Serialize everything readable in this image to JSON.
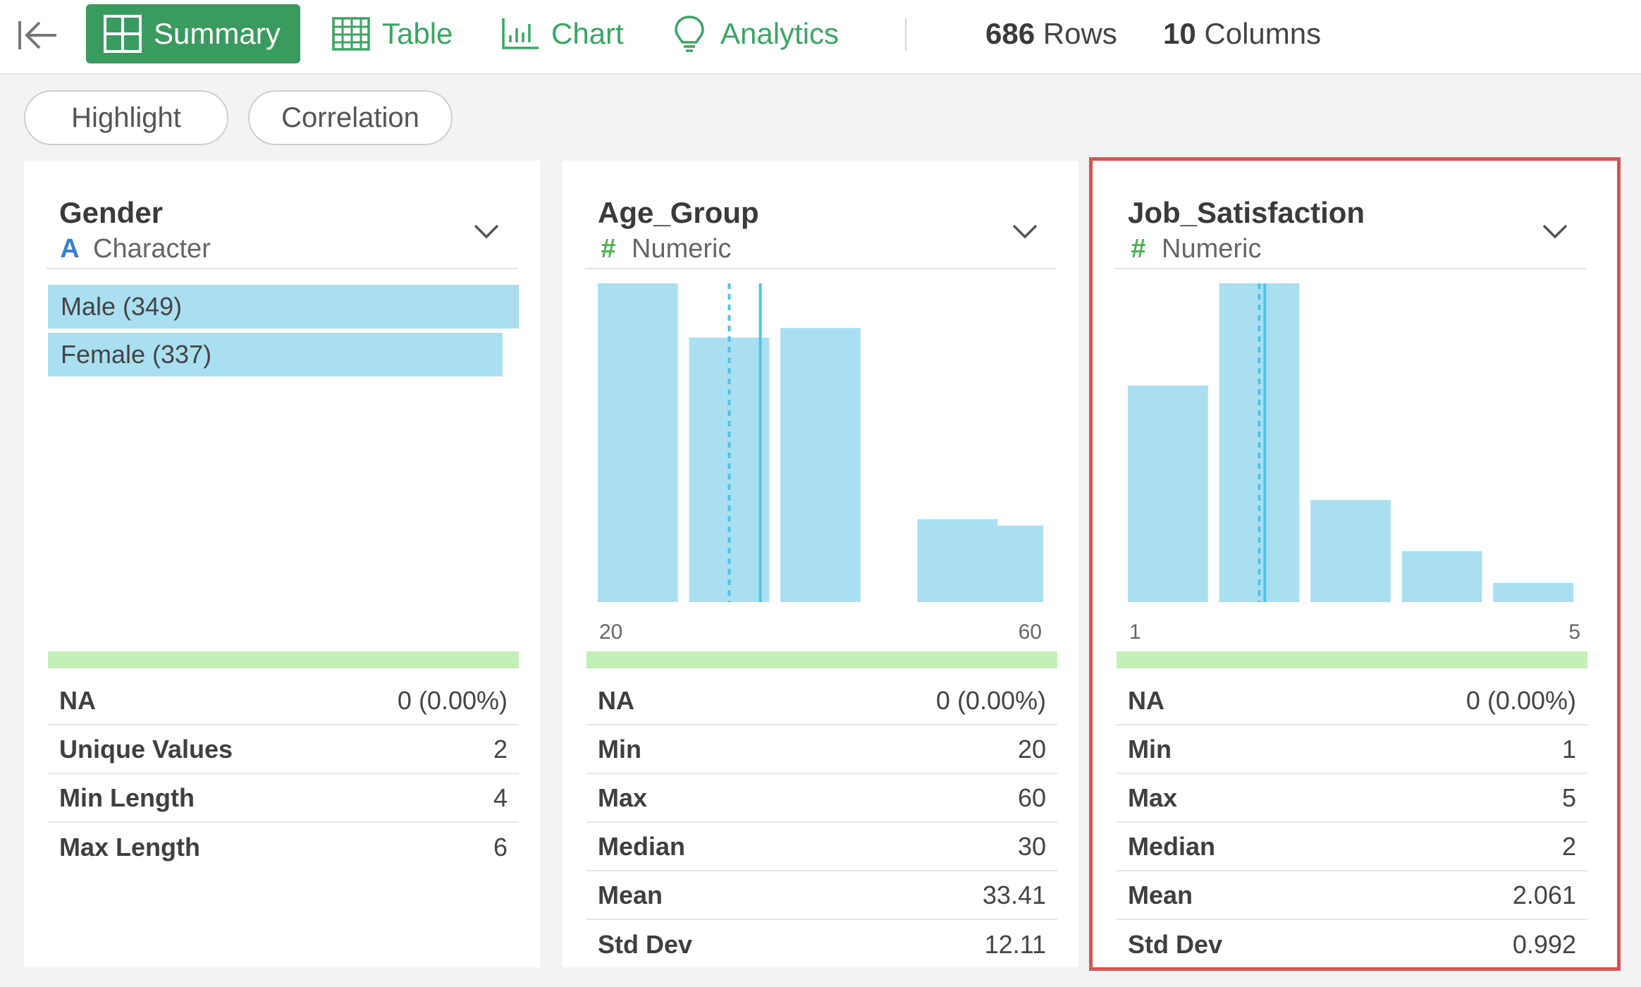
{
  "toolbar": {
    "tabs": [
      {
        "label": "Summary",
        "icon": "summary-grid-icon",
        "active": true
      },
      {
        "label": "Table",
        "icon": "table-icon",
        "active": false
      },
      {
        "label": "Chart",
        "icon": "bar-chart-icon",
        "active": false
      },
      {
        "label": "Analytics",
        "icon": "lightbulb-icon",
        "active": false
      }
    ],
    "rows": {
      "count": "686",
      "label": "Rows"
    },
    "columns": {
      "count": "10",
      "label": "Columns"
    }
  },
  "pills": [
    "Highlight",
    "Correlation"
  ],
  "colors": {
    "accent": "#3a9b5f",
    "bar": "#aadff2",
    "valid": "#c2f0b6",
    "mean_line": "#4fc3e8",
    "selection": "#d9534f"
  },
  "cards": [
    {
      "name": "Gender",
      "type": "Character",
      "type_glyph": "A",
      "categories": [
        {
          "label": "Male (349)",
          "count": 349
        },
        {
          "label": "Female (337)",
          "count": 337
        }
      ],
      "stats": [
        {
          "key": "NA",
          "value": "0 (0.00%)"
        },
        {
          "key": "Unique Values",
          "value": "2"
        },
        {
          "key": "Min Length",
          "value": "4"
        },
        {
          "key": "Max Length",
          "value": "6"
        }
      ]
    },
    {
      "name": "Age_Group",
      "type": "Numeric",
      "type_glyph": "#",
      "axis": {
        "min": "20",
        "max": "60"
      },
      "stats": [
        {
          "key": "NA",
          "value": "0 (0.00%)"
        },
        {
          "key": "Min",
          "value": "20"
        },
        {
          "key": "Max",
          "value": "60"
        },
        {
          "key": "Median",
          "value": "30"
        },
        {
          "key": "Mean",
          "value": "33.41"
        },
        {
          "key": "Std Dev",
          "value": "12.11"
        }
      ]
    },
    {
      "name": "Job_Satisfaction",
      "type": "Numeric",
      "type_glyph": "#",
      "selected": true,
      "axis": {
        "min": "1",
        "max": "5"
      },
      "stats": [
        {
          "key": "NA",
          "value": "0 (0.00%)"
        },
        {
          "key": "Min",
          "value": "1"
        },
        {
          "key": "Max",
          "value": "5"
        },
        {
          "key": "Median",
          "value": "2"
        },
        {
          "key": "Mean",
          "value": "2.061"
        },
        {
          "key": "Std Dev",
          "value": "0.992"
        }
      ]
    }
  ],
  "chart_data": [
    {
      "type": "bar",
      "title": "Gender",
      "categories": [
        "Male",
        "Female"
      ],
      "values": [
        349,
        337
      ]
    },
    {
      "type": "bar",
      "title": "Age_Group",
      "x": [
        20,
        30,
        40,
        55,
        60
      ],
      "values": [
        1.0,
        0.83,
        0.86,
        0.26,
        0.24
      ],
      "xlim": [
        20,
        60
      ],
      "median": 30,
      "mean": 33.41
    },
    {
      "type": "bar",
      "title": "Job_Satisfaction",
      "x": [
        1,
        2,
        3,
        4,
        5
      ],
      "values": [
        0.68,
        1.0,
        0.32,
        0.16,
        0.06
      ],
      "xlim": [
        1,
        5
      ],
      "median": 2,
      "mean": 2.061
    }
  ]
}
